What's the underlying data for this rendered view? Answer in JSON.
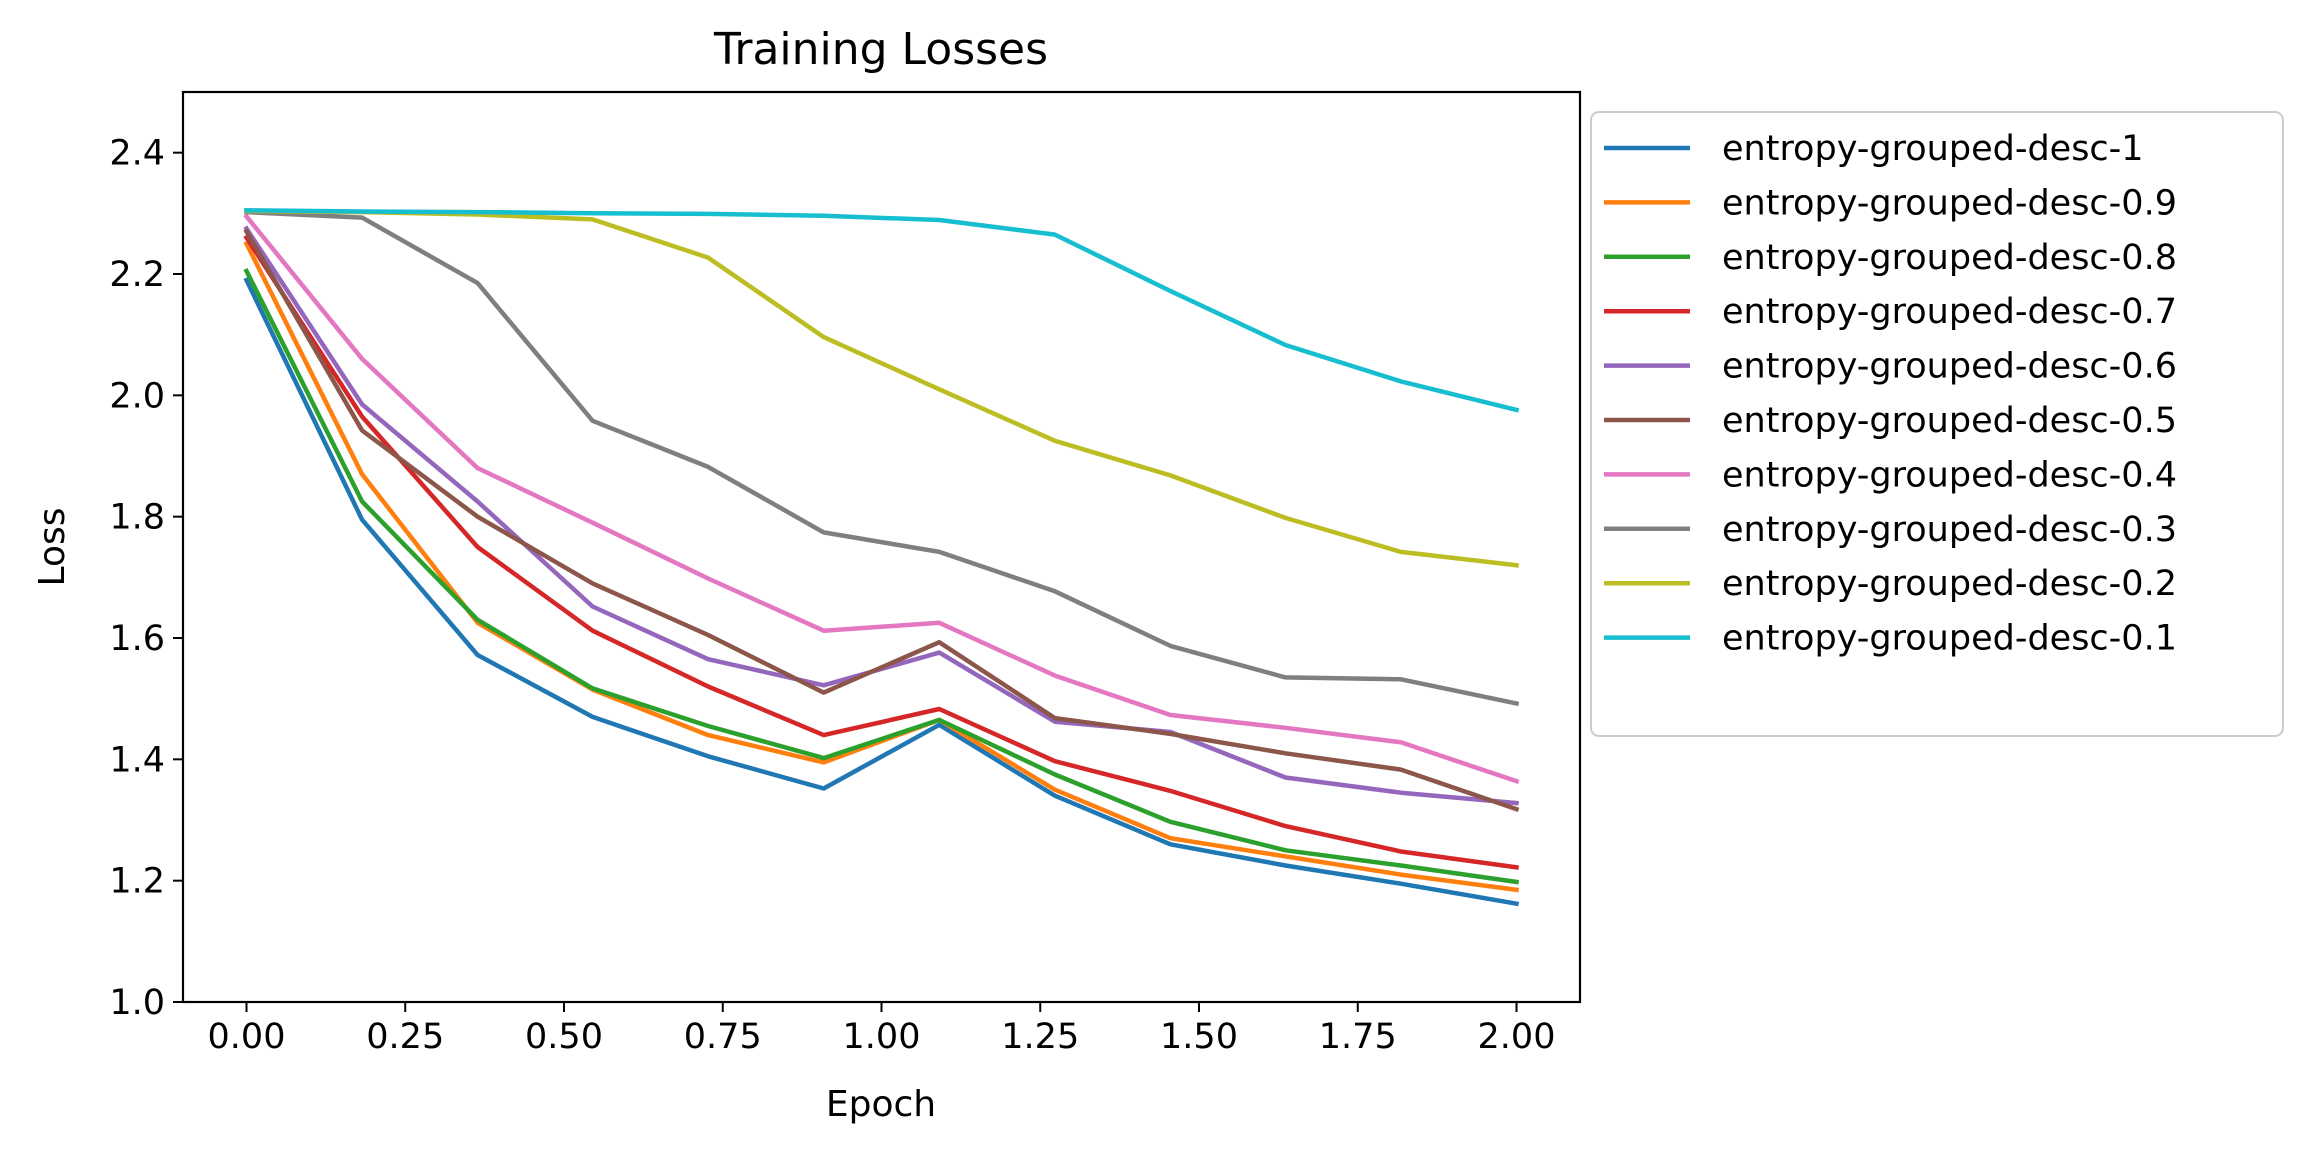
{
  "chart_data": {
    "type": "line",
    "title": "Training Losses",
    "xlabel": "Epoch",
    "ylabel": "Loss",
    "xlim": [
      -0.1,
      2.1
    ],
    "ylim": [
      1.0,
      2.5
    ],
    "xticks": [
      "0.00",
      "0.25",
      "0.50",
      "0.75",
      "1.00",
      "1.25",
      "1.50",
      "1.75",
      "2.00"
    ],
    "yticks": [
      "1.0",
      "1.2",
      "1.4",
      "1.6",
      "1.8",
      "2.0",
      "2.2",
      "2.4"
    ],
    "grid": false,
    "legend_position": "outside-right",
    "x": [
      0.0,
      0.182,
      0.364,
      0.545,
      0.727,
      0.909,
      1.091,
      1.273,
      1.455,
      1.636,
      1.818,
      2.0
    ],
    "series": [
      {
        "name": "entropy-grouped-desc-1",
        "color": "#1f77b4",
        "values": [
          2.19,
          1.795,
          1.572,
          1.47,
          1.405,
          1.352,
          1.457,
          1.34,
          1.26,
          1.225,
          1.195,
          1.162
        ]
      },
      {
        "name": "entropy-grouped-desc-0.9",
        "color": "#ff7f0e",
        "values": [
          2.25,
          1.87,
          1.625,
          1.515,
          1.44,
          1.395,
          1.465,
          1.35,
          1.27,
          1.24,
          1.21,
          1.185
        ]
      },
      {
        "name": "entropy-grouped-desc-0.8",
        "color": "#2ca02c",
        "values": [
          2.205,
          1.825,
          1.63,
          1.517,
          1.455,
          1.402,
          1.465,
          1.375,
          1.297,
          1.25,
          1.225,
          1.198
        ]
      },
      {
        "name": "entropy-grouped-desc-0.7",
        "color": "#d62728",
        "values": [
          2.26,
          1.965,
          1.75,
          1.612,
          1.52,
          1.44,
          1.483,
          1.397,
          1.348,
          1.29,
          1.248,
          1.222
        ]
      },
      {
        "name": "entropy-grouped-desc-0.6",
        "color": "#9467bd",
        "values": [
          2.275,
          1.985,
          1.825,
          1.652,
          1.565,
          1.522,
          1.576,
          1.462,
          1.445,
          1.37,
          1.345,
          1.328
        ]
      },
      {
        "name": "entropy-grouped-desc-0.5",
        "color": "#8c564b",
        "values": [
          2.27,
          1.942,
          1.8,
          1.69,
          1.605,
          1.51,
          1.593,
          1.468,
          1.442,
          1.41,
          1.383,
          1.318
        ]
      },
      {
        "name": "entropy-grouped-desc-0.4",
        "color": "#e377c2",
        "values": [
          2.295,
          2.06,
          1.88,
          1.79,
          1.698,
          1.612,
          1.625,
          1.538,
          1.473,
          1.452,
          1.428,
          1.364
        ]
      },
      {
        "name": "entropy-grouped-desc-0.3",
        "color": "#7f7f7f",
        "values": [
          2.302,
          2.293,
          2.185,
          1.958,
          1.882,
          1.774,
          1.742,
          1.677,
          1.587,
          1.535,
          1.532,
          1.492
        ]
      },
      {
        "name": "entropy-grouped-desc-0.2",
        "color": "#bcbd22",
        "values": [
          2.304,
          2.302,
          2.298,
          2.29,
          2.227,
          2.096,
          2.01,
          1.925,
          1.868,
          1.798,
          1.742,
          1.72
        ]
      },
      {
        "name": "entropy-grouped-desc-0.1",
        "color": "#17becf",
        "values": [
          2.305,
          2.303,
          2.302,
          2.3,
          2.299,
          2.296,
          2.289,
          2.265,
          2.172,
          2.083,
          2.023,
          1.976
        ]
      }
    ]
  }
}
